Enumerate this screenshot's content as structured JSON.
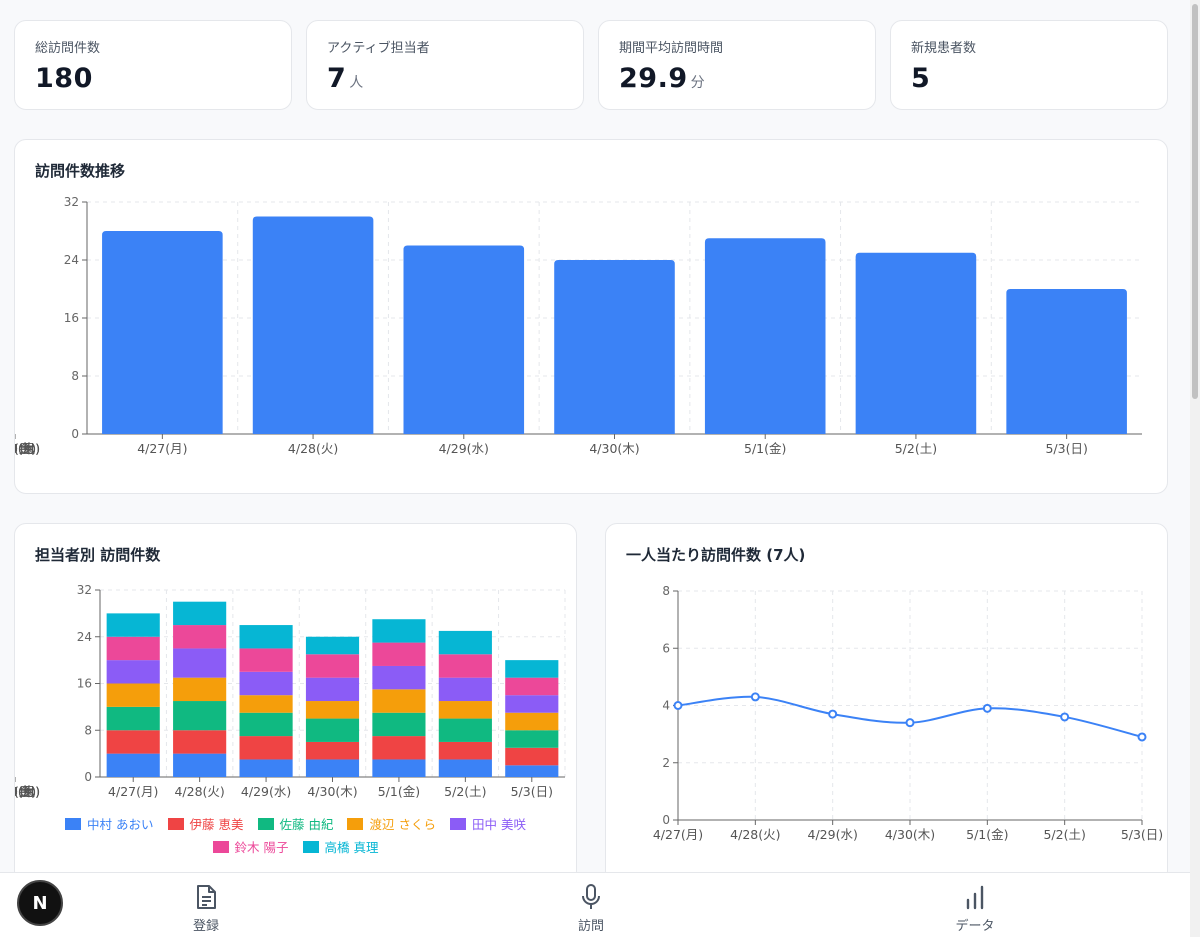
{
  "kpis": [
    {
      "label": "総訪問件数",
      "value": "180",
      "unit": ""
    },
    {
      "label": "アクティブ担当者",
      "value": "7",
      "unit": "人"
    },
    {
      "label": "期間平均訪問時間",
      "value": "29.9",
      "unit": "分"
    },
    {
      "label": "新規患者数",
      "value": "5",
      "unit": ""
    }
  ],
  "colors": {
    "primary": "#3b82f6",
    "card_border": "#e5e7eb",
    "background": "#f8f9fb"
  },
  "chart_data": [
    {
      "id": "visits_trend",
      "type": "bar",
      "title": "訪問件数推移",
      "categories": [
        "4/27(月)",
        "4/28(火)",
        "4/29(水)",
        "4/30(木)",
        "5/1(金)",
        "5/2(土)",
        "5/3(日)"
      ],
      "values": [
        28,
        30,
        26,
        24,
        27,
        25,
        20
      ],
      "ylim": [
        0,
        32
      ],
      "yticks": [
        0,
        8,
        16,
        24,
        32
      ],
      "color": "#3b82f6",
      "grid": true
    },
    {
      "id": "visits_by_staff",
      "type": "bar",
      "stacked": true,
      "title": "担当者別 訪問件数",
      "categories": [
        "4/27(月)",
        "4/28(火)",
        "4/29(水)",
        "4/30(木)",
        "5/1(金)",
        "5/2(土)",
        "5/3(日)"
      ],
      "ylim": [
        0,
        32
      ],
      "yticks": [
        0,
        8,
        16,
        24,
        32
      ],
      "grid": true,
      "legend": "bottom",
      "series": [
        {
          "name": "中村 あおい",
          "color": "#3b82f6",
          "values": [
            4,
            4,
            3,
            3,
            3,
            3,
            2
          ]
        },
        {
          "name": "伊藤 恵美",
          "color": "#ef4444",
          "values": [
            4,
            4,
            4,
            3,
            4,
            3,
            3
          ]
        },
        {
          "name": "佐藤 由紀",
          "color": "#10b981",
          "values": [
            4,
            5,
            4,
            4,
            4,
            4,
            3
          ]
        },
        {
          "name": "渡辺 さくら",
          "color": "#f59e0b",
          "values": [
            4,
            4,
            3,
            3,
            4,
            3,
            3
          ]
        },
        {
          "name": "田中 美咲",
          "color": "#8b5cf6",
          "values": [
            4,
            5,
            4,
            4,
            4,
            4,
            3
          ]
        },
        {
          "name": "鈴木 陽子",
          "color": "#ec4899",
          "values": [
            4,
            4,
            4,
            4,
            4,
            4,
            3
          ]
        },
        {
          "name": "高橋 真理",
          "color": "#06b6d4",
          "values": [
            4,
            4,
            4,
            3,
            4,
            4,
            3
          ]
        }
      ]
    },
    {
      "id": "visits_per_person",
      "type": "line",
      "title": "一人当たり訪問件数 (7人)",
      "categories": [
        "4/27(月)",
        "4/28(火)",
        "4/29(水)",
        "4/30(木)",
        "5/1(金)",
        "5/2(土)",
        "5/3(日)"
      ],
      "values": [
        4.0,
        4.3,
        3.7,
        3.4,
        3.9,
        3.6,
        2.9
      ],
      "ylim": [
        0,
        8
      ],
      "yticks": [
        0,
        2,
        4,
        6,
        8
      ],
      "color": "#3b82f6",
      "grid": true
    }
  ],
  "bottom_nav": {
    "items": [
      {
        "label": "登録",
        "icon": "document-icon"
      },
      {
        "label": "訪問",
        "icon": "microphone-icon"
      },
      {
        "label": "データ",
        "icon": "bar-chart-icon"
      }
    ]
  },
  "badge": {
    "letter": "N"
  }
}
